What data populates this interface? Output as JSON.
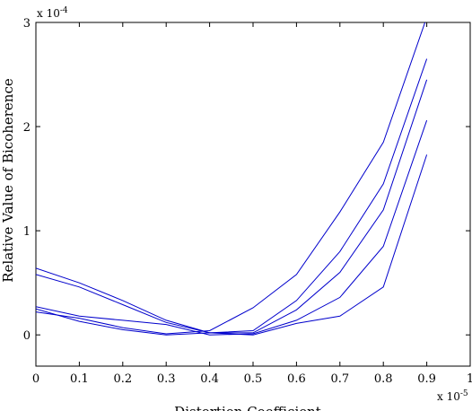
{
  "chart_data": {
    "type": "line",
    "xlabel": "Distortion Coefficient",
    "ylabel": "Relative Value of Bicoherence",
    "x_exponent": "x 10",
    "x_exponent_power": "-5",
    "y_exponent": "x 10",
    "y_exponent_power": "-4",
    "xlim": [
      0,
      1
    ],
    "ylim": [
      -0.3,
      3
    ],
    "x_ticks": [
      0,
      0.1,
      0.2,
      0.3,
      0.4,
      0.5,
      0.6,
      0.7,
      0.8,
      0.9,
      1
    ],
    "x_tick_labels": [
      "0",
      "0.1",
      "0.2",
      "0.3",
      "0.4",
      "0.5",
      "0.6",
      "0.7",
      "0.8",
      "0.9",
      "1"
    ],
    "y_ticks": [
      0,
      1,
      2,
      3
    ],
    "y_tick_labels": [
      "0",
      "1",
      "2",
      "3"
    ],
    "grid": false,
    "line_color": "#0000cc",
    "x": [
      0,
      0.1,
      0.2,
      0.3,
      0.4,
      0.5,
      0.6,
      0.7,
      0.8,
      0.9
    ],
    "series": [
      {
        "values": [
          0.22,
          0.16,
          0.07,
          0.01,
          0.04,
          0.26,
          0.58,
          1.18,
          1.85,
          3.05
        ]
      },
      {
        "values": [
          0.58,
          0.46,
          0.29,
          0.12,
          0.02,
          0.04,
          0.33,
          0.8,
          1.45,
          2.65
        ]
      },
      {
        "values": [
          0.64,
          0.5,
          0.33,
          0.14,
          0.02,
          0.02,
          0.24,
          0.6,
          1.2,
          2.45
        ]
      },
      {
        "values": [
          0.27,
          0.18,
          0.14,
          0.1,
          0.0,
          0.01,
          0.14,
          0.36,
          0.85,
          2.06
        ]
      },
      {
        "values": [
          0.25,
          0.13,
          0.05,
          0.0,
          0.02,
          0.0,
          0.11,
          0.18,
          0.46,
          1.73
        ]
      }
    ]
  }
}
